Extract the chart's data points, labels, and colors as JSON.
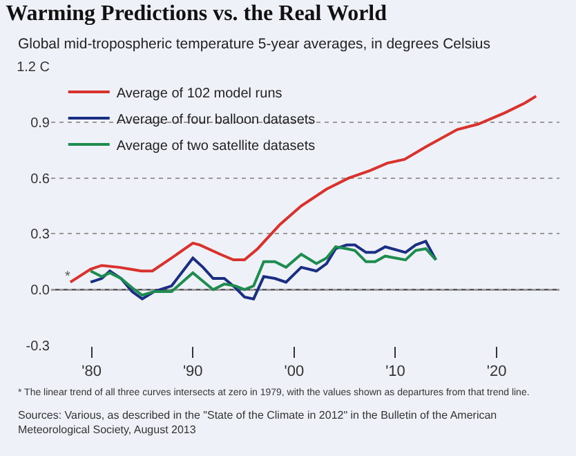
{
  "chart_data": {
    "type": "line",
    "title": "Warming Predictions vs. the Real World",
    "subtitle": "Global mid-tropospheric temperature 5-year averages, in degrees Celsius",
    "series": [
      {
        "name": "Average of 102 model runs",
        "color": "#d9312b",
        "x": [
          1977.9,
          1979.9,
          1981,
          1982.7,
          1983.8,
          1984.9,
          1986,
          1987.9,
          1990,
          1990.7,
          1992.7,
          1994,
          1995.1,
          1996.4,
          1998.6,
          2000.7,
          2003.2,
          2005.4,
          2007.5,
          2009.2,
          2010.9,
          2013.1,
          2016.1,
          2018.2,
          2020.8,
          2022.7,
          2023.9
        ],
        "values": [
          0.04,
          0.11,
          0.13,
          0.12,
          0.11,
          0.1,
          0.1,
          0.17,
          0.25,
          0.24,
          0.19,
          0.16,
          0.16,
          0.22,
          0.35,
          0.45,
          0.54,
          0.6,
          0.64,
          0.68,
          0.7,
          0.77,
          0.86,
          0.89,
          0.95,
          1.0,
          1.04
        ]
      },
      {
        "name": "Average of four balloon datasets",
        "color": "#1a2f84",
        "x": [
          1979.9,
          1981,
          1981.8,
          1982.9,
          1984,
          1985,
          1986.2,
          1987.9,
          1990,
          1991,
          1992,
          1993.1,
          1994.2,
          1995.1,
          1996,
          1997,
          1998.1,
          1999.2,
          2000.7,
          2002.2,
          2003.2,
          2004.1,
          2005.2,
          2006,
          2007.1,
          2008,
          2009,
          2011,
          2012,
          2013,
          2014
        ],
        "values": [
          0.04,
          0.06,
          0.1,
          0.06,
          -0.01,
          -0.05,
          -0.01,
          0.02,
          0.17,
          0.12,
          0.06,
          0.06,
          0.01,
          -0.04,
          -0.05,
          0.07,
          0.06,
          0.04,
          0.12,
          0.1,
          0.14,
          0.22,
          0.24,
          0.24,
          0.2,
          0.2,
          0.23,
          0.2,
          0.24,
          0.26,
          0.16
        ]
      },
      {
        "name": "Average of two satellite datasets",
        "color": "#1e8c4e",
        "x": [
          1979.9,
          1981,
          1981.8,
          1982.9,
          1984,
          1985,
          1986.2,
          1987.9,
          1990,
          1992,
          1993.1,
          1994.2,
          1995.1,
          1996,
          1997,
          1998.1,
          1999.2,
          2000.7,
          2002.2,
          2003.2,
          2004.1,
          2005.2,
          2006,
          2007.1,
          2008,
          2009,
          2011,
          2012,
          2013,
          2014
        ],
        "values": [
          0.1,
          0.07,
          0.09,
          0.06,
          0.01,
          -0.03,
          -0.01,
          -0.01,
          0.09,
          0.0,
          0.03,
          0.02,
          0.0,
          0.02,
          0.15,
          0.15,
          0.12,
          0.19,
          0.14,
          0.17,
          0.23,
          0.22,
          0.21,
          0.15,
          0.15,
          0.18,
          0.16,
          0.21,
          0.22,
          0.16
        ]
      }
    ],
    "xlim": [
      1976,
      2026.2
    ],
    "ylim": [
      -0.3,
      1.2
    ],
    "xticks": [
      {
        "value": 1980,
        "label": "'80"
      },
      {
        "value": 1990,
        "label": "'90"
      },
      {
        "value": 2000,
        "label": "'00"
      },
      {
        "value": 2010,
        "label": "'10"
      },
      {
        "value": 2020,
        "label": "'20"
      }
    ],
    "yticks": [
      -0.3,
      {
        "value": 0,
        "label": "0.0"
      },
      0.3,
      0.6,
      0.9,
      {
        "value": 1.2,
        "label": "1.2 C"
      }
    ],
    "grid": "y",
    "legend": "top left",
    "line_style": "solid",
    "marker": "none",
    "ref_lines": [
      {
        "axis": "y",
        "value": 0,
        "color": "#555555"
      }
    ],
    "annotations": [
      {
        "text": "*",
        "x": 1977.6,
        "y": 0.07
      },
      "* The linear trend of all three curves intersects at zero in 1979, with the values shown as departures from that trend line.",
      "Sources: Various, as described in the \"State of the Climate in 2012\" in the Bulletin of the American Meteorological Society, August 2013"
    ]
  }
}
